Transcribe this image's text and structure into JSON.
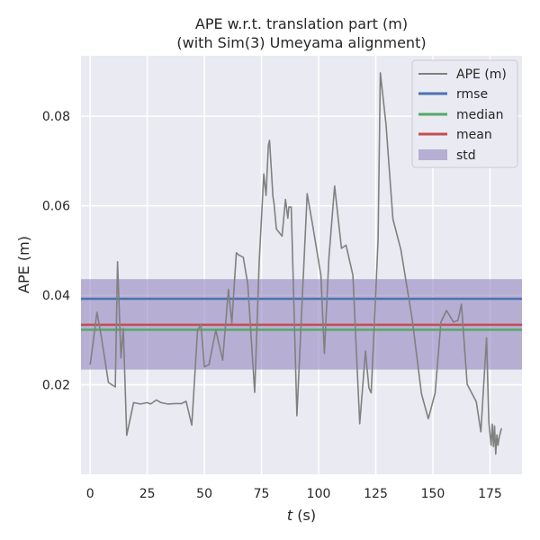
{
  "chart_data": {
    "type": "line",
    "title_line1": "APE w.r.t. translation part (m)",
    "title_line2": "(with Sim(3) Umeyama alignment)",
    "xlabel_var": "t",
    "xlabel_unit": " (s)",
    "ylabel": "APE (m)",
    "xlim": [
      -4,
      189
    ],
    "ylim": [
      0.0,
      0.0935
    ],
    "xticks": [
      0,
      25,
      50,
      75,
      100,
      125,
      150,
      175
    ],
    "xtick_labels": [
      "0",
      "25",
      "50",
      "75",
      "100",
      "125",
      "150",
      "175"
    ],
    "yticks": [
      0.02,
      0.04,
      0.06,
      0.08
    ],
    "ytick_labels": [
      "0.02",
      "0.04",
      "0.06",
      "0.08"
    ],
    "grid": true,
    "legend_position": "top-right",
    "legend": [
      "APE (m)",
      "rmse",
      "median",
      "mean",
      "std"
    ],
    "colors": {
      "ape": "#808080",
      "rmse": "#4c72b0",
      "median": "#55a868",
      "mean": "#c44e52",
      "std": "#8172b3",
      "background": "#eaeaf2"
    },
    "stats": {
      "rmse": 0.0392,
      "median": 0.0323,
      "mean": 0.0334,
      "std_low": 0.0234,
      "std_high": 0.0436
    },
    "series": [
      {
        "name": "APE (m)",
        "x": [
          0,
          3,
          5,
          8,
          11,
          12,
          13.5,
          14.5,
          16,
          19,
          22,
          25,
          26.5,
          29,
          31,
          34,
          37,
          40,
          42,
          44.5,
          47,
          48.5,
          50,
          52,
          55,
          58,
          60.5,
          62,
          64,
          65,
          67,
          69,
          72,
          74,
          76,
          77,
          78,
          78.5,
          80,
          80.5,
          81.5,
          84,
          85.5,
          86.5,
          87,
          88,
          90.5,
          92.5,
          95,
          97.5,
          101,
          102.5,
          104.5,
          107,
          110,
          112,
          115,
          118,
          120.5,
          122,
          123,
          124.5,
          126,
          127,
          129.5,
          132.5,
          136,
          141,
          145,
          148,
          151,
          153.5,
          156,
          159,
          161,
          162.5,
          165,
          169,
          171,
          173.5,
          174.5,
          175.5,
          176,
          176.5,
          177,
          177.5,
          178,
          178.5,
          179,
          180
        ],
        "y": [
          0.0245,
          0.0362,
          0.0305,
          0.0205,
          0.0195,
          0.0475,
          0.026,
          0.0326,
          0.0087,
          0.016,
          0.0157,
          0.016,
          0.0157,
          0.0166,
          0.016,
          0.0157,
          0.0158,
          0.0158,
          0.0163,
          0.011,
          0.0322,
          0.0335,
          0.024,
          0.0245,
          0.0322,
          0.0255,
          0.0413,
          0.0338,
          0.0495,
          0.049,
          0.0485,
          0.0425,
          0.0183,
          0.0475,
          0.0671,
          0.0623,
          0.0735,
          0.0746,
          0.062,
          0.0605,
          0.0548,
          0.0532,
          0.0614,
          0.0572,
          0.0597,
          0.0597,
          0.0131,
          0.0355,
          0.0627,
          0.0553,
          0.0444,
          0.027,
          0.0485,
          0.0644,
          0.0505,
          0.0512,
          0.0445,
          0.0113,
          0.0275,
          0.0193,
          0.0182,
          0.0345,
          0.0525,
          0.0897,
          0.0782,
          0.057,
          0.0502,
          0.0345,
          0.018,
          0.0124,
          0.0182,
          0.034,
          0.0366,
          0.034,
          0.0344,
          0.038,
          0.0201,
          0.0162,
          0.0095,
          0.0305,
          0.0115,
          0.0065,
          0.0112,
          0.0062,
          0.0108,
          0.0045,
          0.0088,
          0.0065,
          0.0082,
          0.0103
        ]
      }
    ]
  }
}
